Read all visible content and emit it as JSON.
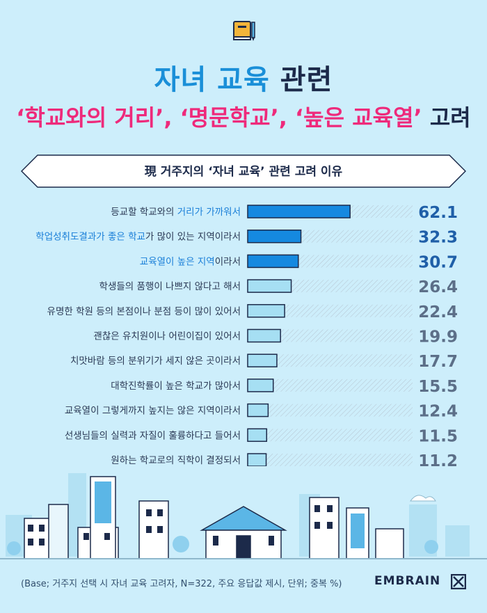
{
  "header": {
    "title_part1": "자녀 교육",
    "title_part2": "관련",
    "subtitle_highlight": "‘학교와의 거리’, ‘명문학교’, ‘높은 교육열’",
    "subtitle_rest": "고려"
  },
  "banner": {
    "text": "現 거주지의 ‘자녀 교육’ 관련 고려 이유"
  },
  "chart_data": {
    "type": "bar",
    "orientation": "horizontal",
    "title": "現 거주지의 ‘자녀 교육’ 관련 고려 이유",
    "categories": [
      "등교할 학교와의 거리가 가까워서",
      "학업성취도결과가 좋은 학교가 많이 있는 지역이라서",
      "교육열이 높은 지역이라서",
      "학생들의 품행이 나쁘지 않다고 해서",
      "유명한 학원 등의 본점이나 분점 등이 많이 있어서",
      "괜찮은 유치원이나 어린이집이 있어서",
      "치맛바람 등의 분위기가 세지 않은 곳이라서",
      "대학진학률이 높은 학교가 많아서",
      "교육열이 그렇게까지 높지는 않은 지역이라서",
      "선생님들의 실력과 자질이 훌륭하다고 들어서",
      "원하는 학교로의 직학이 결정되서"
    ],
    "label_parts": [
      [
        "등교할 학교와의 ",
        "거리가 가까워서",
        ""
      ],
      [
        "",
        "학업성취도결과가 좋은 학교",
        "가 많이 있는 지역이라서"
      ],
      [
        "",
        "교육열이 높은 지역",
        "이라서"
      ],
      [
        "학생들의 품행이 나쁘지 않다고 해서",
        "",
        ""
      ],
      [
        "유명한 학원 등의 본점이나 분점 등이 많이 있어서",
        "",
        ""
      ],
      [
        "괜찮은 유치원이나 어린이집이 있어서",
        "",
        ""
      ],
      [
        "치맛바람 등의 분위기가 세지 않은 곳이라서",
        "",
        ""
      ],
      [
        "대학진학률이 높은 학교가 많아서",
        "",
        ""
      ],
      [
        "교육열이 그렇게까지 높지는 않은 지역이라서",
        "",
        ""
      ],
      [
        "선생님들의 실력과 자질이 훌륭하다고 들어서",
        "",
        ""
      ],
      [
        "원하는 학교로의 직학이 결정되서",
        "",
        ""
      ]
    ],
    "values": [
      62.1,
      32.3,
      30.7,
      26.4,
      22.4,
      19.9,
      17.7,
      15.5,
      12.4,
      11.5,
      11.2
    ],
    "value_labels": [
      "62.1",
      "32.3",
      "30.7",
      "26.4",
      "22.4",
      "19.9",
      "17.7",
      "15.5",
      "12.4",
      "11.5",
      "11.2"
    ],
    "highlight_count": 3,
    "xlim": [
      0,
      100
    ],
    "colors": {
      "highlight_bar": "#1589e0",
      "normal_bar": "#a6dff3",
      "highlight_text": "#1a7fd8",
      "normal_text": "#2b3a55",
      "highlight_value": "#1f5fa8",
      "normal_value": "#5c6f88"
    }
  },
  "footer": {
    "note": "(Base; 거주지 선택 시 자녀 교육 고려자, N=322, 주요 응답값 제시, 단위; 중복 %)",
    "brand": "EMBRAIN"
  }
}
